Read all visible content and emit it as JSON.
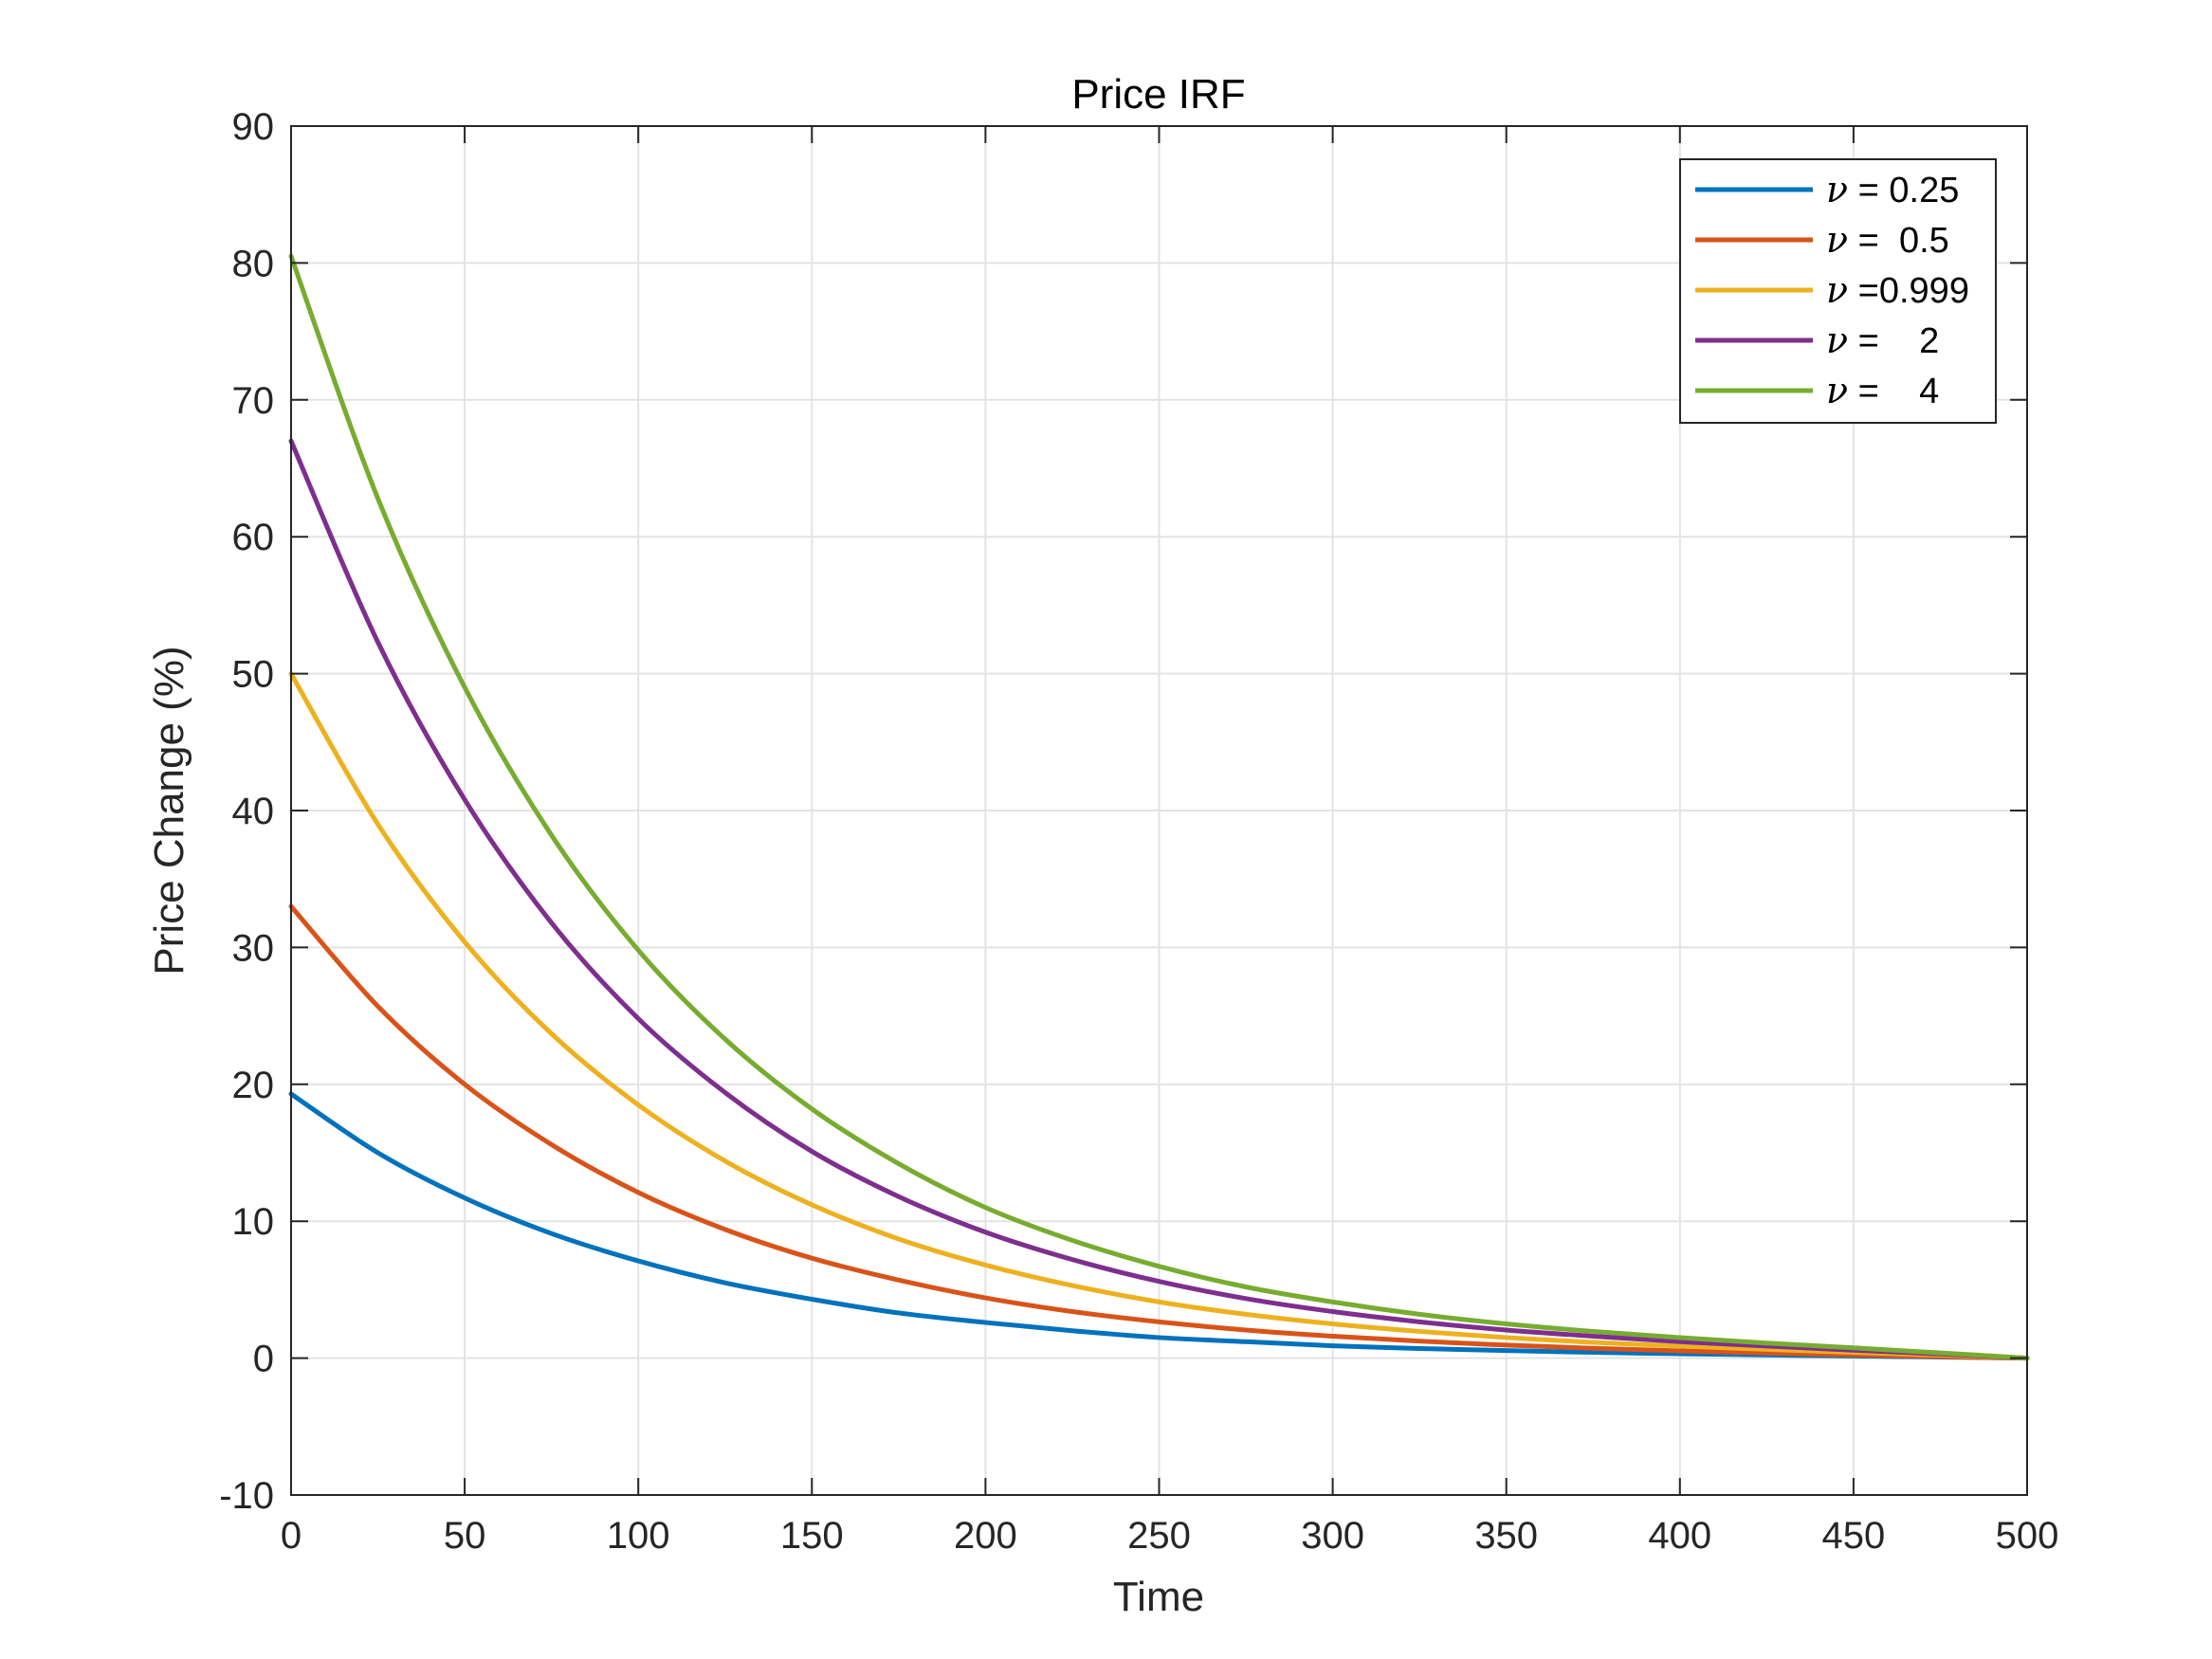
{
  "chart_data": {
    "type": "line",
    "title": "Price IRF",
    "xlabel": "Time",
    "ylabel": "Price Change (%)",
    "xlim": [
      0,
      500
    ],
    "ylim": [
      -10,
      90
    ],
    "xticks": [
      0,
      50,
      100,
      150,
      200,
      250,
      300,
      350,
      400,
      450,
      500
    ],
    "yticks": [
      -10,
      0,
      10,
      20,
      30,
      40,
      50,
      60,
      70,
      80,
      90
    ],
    "grid": true,
    "legend_position": "top-right",
    "x": [
      0,
      25,
      50,
      75,
      100,
      125,
      150,
      175,
      200,
      225,
      250,
      275,
      300,
      325,
      350,
      375,
      400,
      425,
      450,
      475,
      500
    ],
    "series": [
      {
        "name": "ν = 0.25",
        "legend_symbol": "ν",
        "legend_rest": " = 0.25",
        "color": "#0072BD",
        "values": [
          19.3,
          15.0,
          11.7,
          9.1,
          7.1,
          5.5,
          4.3,
          3.3,
          2.6,
          2.0,
          1.5,
          1.2,
          0.9,
          0.7,
          0.55,
          0.42,
          0.32,
          0.23,
          0.15,
          0.08,
          0.0
        ]
      },
      {
        "name": "ν =  0.5",
        "legend_symbol": "ν",
        "legend_rest": " =  0.5",
        "color": "#D95319",
        "values": [
          33.0,
          25.7,
          20.0,
          15.6,
          12.1,
          9.4,
          7.3,
          5.7,
          4.4,
          3.4,
          2.65,
          2.05,
          1.6,
          1.24,
          0.95,
          0.72,
          0.53,
          0.37,
          0.23,
          0.11,
          0.0
        ]
      },
      {
        "name": "ν =0.999",
        "legend_symbol": "ν",
        "legend_rest": " =0.999",
        "color": "#EDB120",
        "values": [
          50.0,
          39.0,
          30.4,
          23.7,
          18.5,
          14.4,
          11.2,
          8.7,
          6.8,
          5.3,
          4.1,
          3.2,
          2.5,
          1.95,
          1.5,
          1.15,
          0.88,
          0.64,
          0.42,
          0.22,
          0.0
        ]
      },
      {
        "name": "ν =    2",
        "legend_symbol": "ν",
        "legend_rest": " =    2",
        "color": "#7E2F8E",
        "values": [
          67.0,
          52.3,
          40.8,
          31.8,
          24.8,
          19.4,
          15.1,
          11.8,
          9.2,
          7.2,
          5.6,
          4.35,
          3.4,
          2.65,
          2.05,
          1.6,
          1.2,
          0.88,
          0.58,
          0.3,
          0.0
        ]
      },
      {
        "name": "ν =    4",
        "legend_symbol": "ν",
        "legend_rest": " =    4",
        "color": "#77AC30",
        "values": [
          80.5,
          62.8,
          49.0,
          38.2,
          29.8,
          23.3,
          18.2,
          14.2,
          11.0,
          8.6,
          6.7,
          5.2,
          4.1,
          3.2,
          2.5,
          1.95,
          1.5,
          1.1,
          0.75,
          0.38,
          0.0
        ]
      }
    ]
  }
}
